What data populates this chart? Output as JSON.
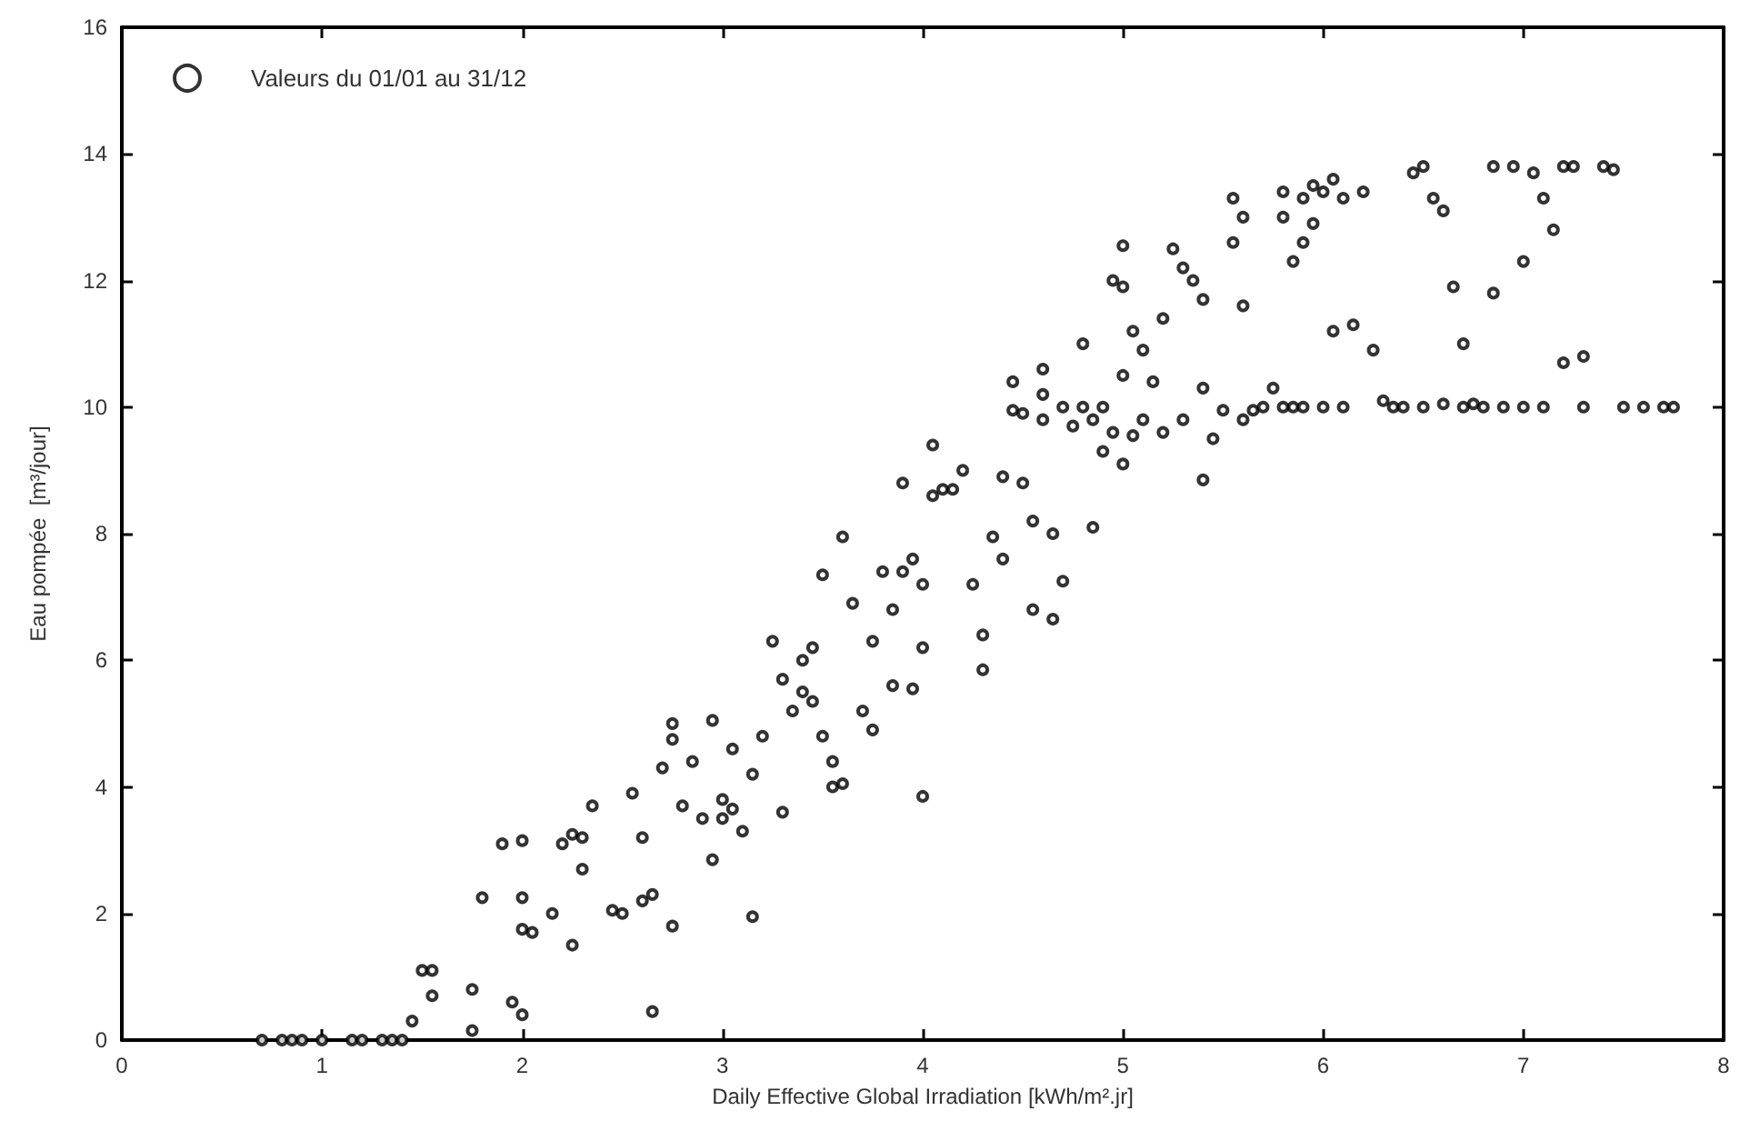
{
  "chart_data": {
    "type": "scatter",
    "xlabel": "Daily Effective Global Irradiation [kWh/m².jr]",
    "ylabel": "Eau pompée  [m³/jour]",
    "xlim": [
      0,
      8
    ],
    "ylim": [
      0,
      16
    ],
    "xticks": [
      0,
      1,
      2,
      3,
      4,
      5,
      6,
      7,
      8
    ],
    "yticks": [
      0,
      2,
      4,
      6,
      8,
      10,
      12,
      14,
      16
    ],
    "grid": false,
    "legend": "top left",
    "marker": "circle",
    "series": [
      {
        "name": "Valeurs du 01/01 au 31/12",
        "color": "#000000",
        "x": [
          0.7,
          0.8,
          0.85,
          0.9,
          1.0,
          1.15,
          1.2,
          1.3,
          1.35,
          1.4,
          1.45,
          1.5,
          1.55,
          1.55,
          1.75,
          1.75,
          1.8,
          1.9,
          1.95,
          2.0,
          2.0,
          2.0,
          2.0,
          2.05,
          2.15,
          2.2,
          2.25,
          2.25,
          2.3,
          2.3,
          2.35,
          2.45,
          2.5,
          2.55,
          2.6,
          2.6,
          2.65,
          2.65,
          2.7,
          2.75,
          2.75,
          2.75,
          2.8,
          2.85,
          2.9,
          2.95,
          2.95,
          3.0,
          3.0,
          3.05,
          3.05,
          3.1,
          3.15,
          3.15,
          3.2,
          3.25,
          3.3,
          3.3,
          3.35,
          3.4,
          3.4,
          3.45,
          3.45,
          3.5,
          3.5,
          3.55,
          3.55,
          3.6,
          3.6,
          3.65,
          3.7,
          3.75,
          3.75,
          3.8,
          3.85,
          3.85,
          3.9,
          3.9,
          3.95,
          3.95,
          4.0,
          4.0,
          4.0,
          4.05,
          4.05,
          4.1,
          4.15,
          4.2,
          4.25,
          4.3,
          4.3,
          4.35,
          4.4,
          4.4,
          4.45,
          4.45,
          4.5,
          4.5,
          4.55,
          4.55,
          4.6,
          4.6,
          4.6,
          4.65,
          4.65,
          4.7,
          4.7,
          4.75,
          4.8,
          4.8,
          4.85,
          4.85,
          4.9,
          4.9,
          4.95,
          4.95,
          5.0,
          5.0,
          5.0,
          5.0,
          5.05,
          5.05,
          5.1,
          5.1,
          5.15,
          5.2,
          5.2,
          5.25,
          5.3,
          5.3,
          5.35,
          5.4,
          5.4,
          5.4,
          5.45,
          5.5,
          5.55,
          5.55,
          5.6,
          5.6,
          5.6,
          5.65,
          5.7,
          5.75,
          5.8,
          5.8,
          5.85,
          5.85,
          5.9,
          5.9,
          5.95,
          5.95,
          6.0,
          6.0,
          6.05,
          6.05,
          6.1,
          6.15,
          6.2,
          6.25,
          6.3,
          6.35,
          6.45,
          6.5,
          6.55,
          6.6,
          6.6,
          6.65,
          6.7,
          6.75,
          6.85,
          6.85,
          6.95,
          7.0,
          7.05,
          7.1,
          7.15,
          7.2,
          7.25,
          7.2,
          7.3,
          7.4,
          7.45,
          5.8,
          5.9,
          6.1,
          6.4,
          6.5,
          6.7,
          6.8,
          6.9,
          7.0,
          7.1,
          7.3,
          7.5,
          7.6,
          7.7,
          7.75
        ],
        "values": [
          0,
          0,
          0,
          0,
          0,
          0,
          0,
          0,
          0,
          0,
          0.3,
          1.1,
          1.1,
          0.7,
          0.8,
          0.15,
          2.25,
          3.1,
          0.6,
          0.4,
          1.75,
          2.25,
          3.15,
          1.7,
          2.0,
          3.1,
          1.5,
          3.25,
          3.2,
          2.7,
          3.7,
          2.05,
          2.0,
          3.9,
          3.2,
          2.2,
          2.3,
          0.45,
          4.3,
          5.0,
          4.75,
          1.8,
          3.7,
          4.4,
          3.5,
          5.05,
          2.85,
          3.8,
          3.5,
          3.65,
          4.6,
          3.3,
          1.95,
          4.2,
          4.8,
          6.3,
          5.7,
          3.6,
          5.2,
          5.5,
          6.0,
          6.2,
          5.35,
          7.35,
          4.8,
          4.0,
          4.4,
          4.05,
          7.95,
          6.9,
          5.2,
          6.3,
          4.9,
          7.4,
          6.8,
          5.6,
          7.4,
          8.8,
          7.6,
          5.55,
          7.2,
          6.2,
          3.85,
          8.6,
          9.4,
          8.7,
          8.7,
          9.0,
          7.2,
          6.4,
          5.85,
          7.95,
          7.6,
          8.9,
          9.95,
          10.4,
          9.9,
          8.8,
          8.2,
          6.8,
          9.8,
          10.2,
          10.6,
          8.0,
          6.65,
          7.25,
          10.0,
          9.7,
          11.0,
          10.0,
          9.8,
          8.1,
          10.0,
          9.3,
          9.6,
          12.0,
          12.55,
          11.9,
          10.5,
          9.1,
          9.55,
          11.2,
          10.9,
          9.8,
          10.4,
          9.6,
          11.4,
          12.5,
          12.2,
          9.8,
          12.0,
          11.7,
          10.3,
          8.85,
          9.5,
          9.95,
          12.6,
          13.3,
          13.0,
          9.8,
          11.6,
          9.95,
          10.0,
          10.3,
          13.4,
          13.0,
          12.3,
          10.0,
          13.3,
          12.6,
          13.5,
          12.9,
          13.4,
          10.0,
          13.6,
          11.2,
          13.3,
          11.3,
          13.4,
          10.9,
          10.1,
          10.0,
          13.7,
          13.8,
          13.3,
          13.1,
          10.05,
          11.9,
          11.0,
          10.05,
          13.8,
          11.8,
          13.8,
          12.3,
          13.7,
          13.3,
          12.8,
          13.8,
          13.8,
          10.7,
          10.8,
          13.8,
          13.75,
          10.0,
          10.0,
          10.0,
          10.0,
          10.0,
          10.0,
          10.0,
          10.0,
          10.0,
          10.0,
          10.0,
          10.0,
          10.0,
          10.0,
          10.0
        ]
      }
    ]
  }
}
